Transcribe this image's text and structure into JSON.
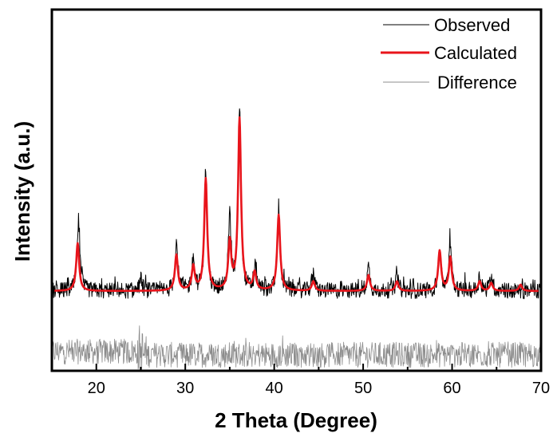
{
  "chart_data": {
    "type": "line",
    "title": "",
    "xlabel": "2 Theta (Degree)",
    "ylabel": "Intensity (a.u.)",
    "xlim": [
      15,
      70
    ],
    "x_ticks": [
      20,
      30,
      40,
      50,
      60,
      70
    ],
    "y_ticks_shown": false,
    "grid": false,
    "legend_position": "top-right",
    "series": [
      {
        "name": "Observed",
        "color": "#000000",
        "style": "thin noisy line",
        "baseline": 100,
        "noise_amplitude": 10,
        "peaks": [
          {
            "x": 18.0,
            "height": 88
          },
          {
            "x": 25.0,
            "height": 15
          },
          {
            "x": 29.0,
            "height": 62
          },
          {
            "x": 30.9,
            "height": 40
          },
          {
            "x": 32.3,
            "height": 145
          },
          {
            "x": 35.0,
            "height": 92
          },
          {
            "x": 36.1,
            "height": 232
          },
          {
            "x": 37.9,
            "height": 30
          },
          {
            "x": 40.5,
            "height": 102
          },
          {
            "x": 44.4,
            "height": 20
          },
          {
            "x": 50.6,
            "height": 30
          },
          {
            "x": 53.8,
            "height": 18
          },
          {
            "x": 58.6,
            "height": 52
          },
          {
            "x": 59.8,
            "height": 60
          },
          {
            "x": 63.1,
            "height": 18
          },
          {
            "x": 64.4,
            "height": 20
          }
        ]
      },
      {
        "name": "Calculated",
        "color": "#e8141b",
        "style": "thick smooth line",
        "baseline": 100,
        "peaks": [
          {
            "x": 17.9,
            "height": 60
          },
          {
            "x": 29.0,
            "height": 45
          },
          {
            "x": 30.9,
            "height": 30
          },
          {
            "x": 32.3,
            "height": 140
          },
          {
            "x": 35.0,
            "height": 60
          },
          {
            "x": 36.1,
            "height": 215
          },
          {
            "x": 37.8,
            "height": 22
          },
          {
            "x": 40.5,
            "height": 95
          },
          {
            "x": 44.4,
            "height": 12
          },
          {
            "x": 50.6,
            "height": 20
          },
          {
            "x": 53.8,
            "height": 12
          },
          {
            "x": 58.6,
            "height": 50
          },
          {
            "x": 59.8,
            "height": 42
          },
          {
            "x": 63.1,
            "height": 12
          },
          {
            "x": 64.4,
            "height": 10
          },
          {
            "x": 67.7,
            "height": 8
          }
        ]
      },
      {
        "name": "Difference",
        "color": "#8c8c8c",
        "style": "thin noisy line",
        "baseline": 20,
        "noise_amplitude": 16,
        "step_at": 25.0
      }
    ]
  }
}
